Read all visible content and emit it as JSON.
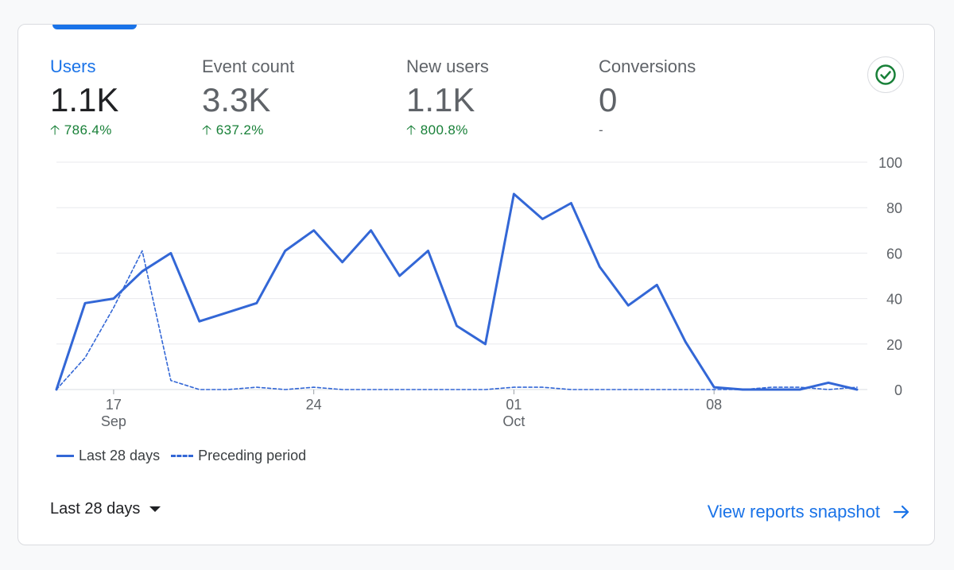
{
  "metrics": [
    {
      "label": "Users",
      "value": "1.1K",
      "change": "786.4%",
      "trend": "up"
    },
    {
      "label": "Event count",
      "value": "3.3K",
      "change": "637.2%",
      "trend": "up"
    },
    {
      "label": "New users",
      "value": "1.1K",
      "change": "800.8%",
      "trend": "up"
    },
    {
      "label": "Conversions",
      "value": "0",
      "change": "-",
      "trend": "none"
    }
  ],
  "status_icon": "check-circle-icon",
  "colors": {
    "accent": "#1a73e8",
    "line": "#3367d6",
    "positive": "#188038",
    "grid": "#e8eaed"
  },
  "chart_data": {
    "type": "line",
    "x": [
      "Sep 15",
      "Sep 16",
      "Sep 17",
      "Sep 18",
      "Sep 19",
      "Sep 20",
      "Sep 21",
      "Sep 22",
      "Sep 23",
      "Sep 24",
      "Sep 25",
      "Sep 26",
      "Sep 27",
      "Sep 28",
      "Sep 29",
      "Sep 30",
      "Oct 1",
      "Oct 2",
      "Oct 3",
      "Oct 4",
      "Oct 5",
      "Oct 6",
      "Oct 7",
      "Oct 8",
      "Oct 9",
      "Oct 10",
      "Oct 11",
      "Oct 12",
      "Oct 13"
    ],
    "series": [
      {
        "name": "Last 28 days",
        "style": "solid",
        "values": [
          0,
          38,
          40,
          52,
          60,
          30,
          34,
          38,
          61,
          70,
          56,
          70,
          50,
          61,
          28,
          20,
          86,
          75,
          82,
          54,
          37,
          46,
          21,
          1,
          0,
          0,
          0,
          3,
          0
        ]
      },
      {
        "name": "Preceding period",
        "style": "dashed",
        "values": [
          0,
          14,
          36,
          61,
          4,
          0,
          0,
          1,
          0,
          1,
          0,
          0,
          0,
          0,
          0,
          0,
          1,
          1,
          0,
          0,
          0,
          0,
          0,
          0,
          0,
          1,
          1,
          0,
          1
        ]
      }
    ],
    "x_ticks": [
      {
        "day": "17",
        "month": "Sep",
        "index": 2
      },
      {
        "day": "24",
        "month": "",
        "index": 9
      },
      {
        "day": "01",
        "month": "Oct",
        "index": 16
      },
      {
        "day": "08",
        "month": "",
        "index": 23
      }
    ],
    "y_ticks": [
      "0",
      "20",
      "40",
      "60",
      "80",
      "100"
    ],
    "ylim": [
      0,
      100
    ],
    "grid": true,
    "legend_position": "bottom-left"
  },
  "footer": {
    "date_range_label": "Last 28 days",
    "view_link_label": "View reports snapshot"
  }
}
